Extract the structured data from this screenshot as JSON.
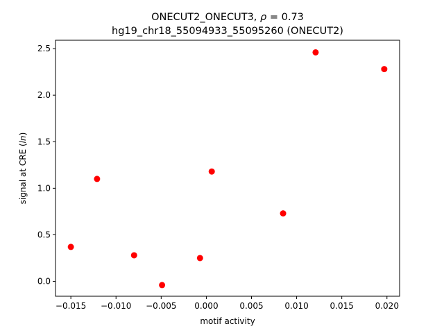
{
  "chart_data": {
    "type": "scatter",
    "title_line1": "ONECUT2_ONECUT3, ",
    "title_rho": "ρ",
    "title_value": " = 0.73",
    "title_line2": "hg19_chr18_55094933_55095260 (ONECUT2)",
    "xlabel": "motif activity",
    "ylabel_prefix": "signal at CRE (",
    "ylabel_italic": "ln",
    "ylabel_suffix": ")",
    "xlim": [
      -0.0167,
      0.0214
    ],
    "ylim": [
      -0.16,
      2.59
    ],
    "xticks": [
      -0.015,
      -0.01,
      -0.005,
      0.0,
      0.005,
      0.01,
      0.015,
      0.02
    ],
    "xtick_labels": [
      "−0.015",
      "−0.010",
      "−0.005",
      "0.000",
      "0.005",
      "0.010",
      "0.015",
      "0.020"
    ],
    "yticks": [
      0.0,
      0.5,
      1.0,
      1.5,
      2.0,
      2.5
    ],
    "ytick_labels": [
      "0.0",
      "0.5",
      "1.0",
      "1.5",
      "2.0",
      "2.5"
    ],
    "grid": false,
    "marker_color": "#ff0000",
    "points": [
      {
        "x": -0.015,
        "y": 0.37
      },
      {
        "x": -0.0121,
        "y": 1.1
      },
      {
        "x": -0.008,
        "y": 0.28
      },
      {
        "x": -0.0049,
        "y": -0.04
      },
      {
        "x": -0.0007,
        "y": 0.25
      },
      {
        "x": 0.0006,
        "y": 1.18
      },
      {
        "x": 0.0085,
        "y": 0.73
      },
      {
        "x": 0.0121,
        "y": 2.46
      },
      {
        "x": 0.0197,
        "y": 2.28
      }
    ]
  }
}
